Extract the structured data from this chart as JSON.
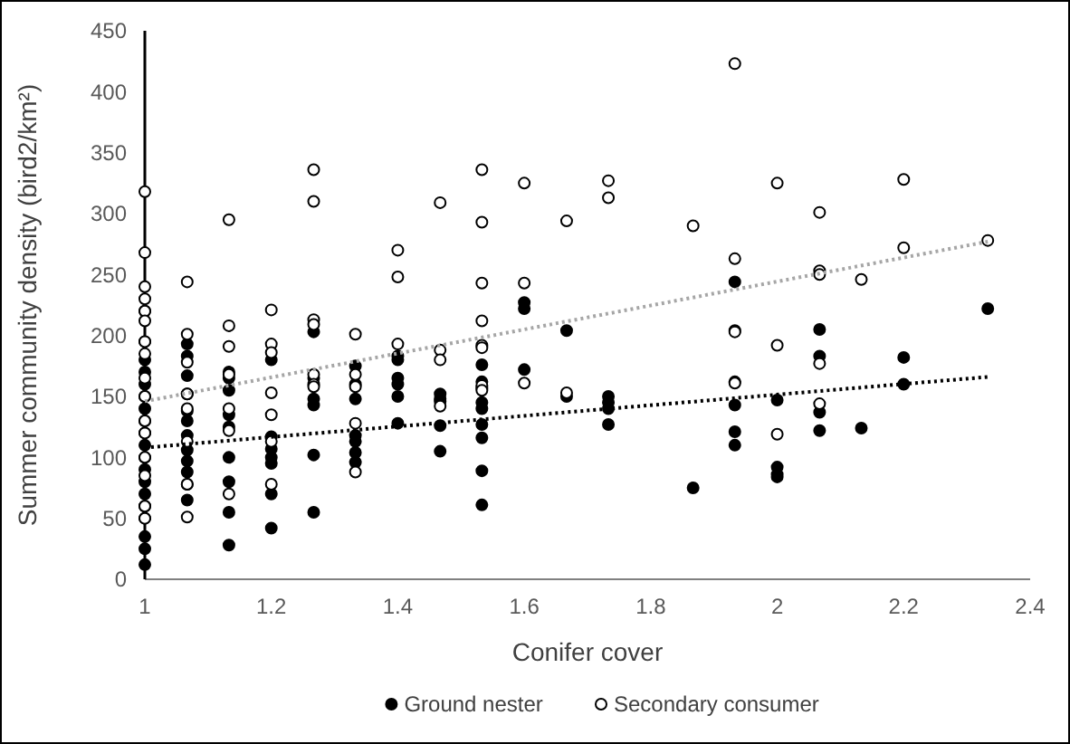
{
  "chart_data": {
    "type": "scatter",
    "xlabel": "Conifer cover",
    "ylabel": "Summer community density (bird2/km²)",
    "xlim": [
      1,
      2.4
    ],
    "xticks": [
      1,
      1.2,
      1.4,
      1.6,
      1.8,
      2,
      2.2,
      2.4
    ],
    "ylim": [
      0,
      450
    ],
    "yticks": [
      0,
      50,
      100,
      150,
      200,
      250,
      300,
      350,
      400,
      450
    ],
    "grid": false,
    "legend": "bottom",
    "marker": "circle",
    "series": [
      {
        "name": "Ground nester",
        "color": "#000000",
        "x": [
          1,
          1,
          1,
          1,
          1,
          1,
          1,
          1,
          1,
          1,
          1,
          1,
          1,
          1,
          1,
          1,
          1,
          1,
          1,
          1.067,
          1.067,
          1.067,
          1.067,
          1.067,
          1.067,
          1.067,
          1.067,
          1.067,
          1.067,
          1.067,
          1.067,
          1.133,
          1.133,
          1.133,
          1.133,
          1.133,
          1.133,
          1.133,
          1.133,
          1.133,
          1.2,
          1.2,
          1.2,
          1.2,
          1.2,
          1.2,
          1.2,
          1.267,
          1.267,
          1.267,
          1.267,
          1.267,
          1.267,
          1.333,
          1.333,
          1.333,
          1.333,
          1.333,
          1.333,
          1.333,
          1.4,
          1.4,
          1.4,
          1.4,
          1.4,
          1.4,
          1.467,
          1.467,
          1.467,
          1.467,
          1.467,
          1.533,
          1.533,
          1.533,
          1.533,
          1.533,
          1.533,
          1.533,
          1.533,
          1.533,
          1.6,
          1.6,
          1.6,
          1.667,
          1.667,
          1.733,
          1.733,
          1.733,
          1.733,
          1.867,
          1.933,
          1.933,
          1.933,
          1.933,
          1.933,
          2,
          2,
          2,
          2,
          2.067,
          2.067,
          2.067,
          2.067,
          2.133,
          2.2,
          2.2,
          2.333
        ],
        "values": [
          220,
          195,
          180,
          170,
          160,
          150,
          140,
          130,
          120,
          110,
          100,
          90,
          80,
          70,
          60,
          50,
          35,
          25,
          12,
          193,
          183,
          167,
          152,
          138,
          130,
          118,
          106,
          97,
          88,
          78,
          65,
          170,
          165,
          155,
          135,
          125,
          100,
          80,
          55,
          28,
          180,
          117,
          107,
          100,
          95,
          70,
          42,
          203,
          165,
          148,
          143,
          102,
          55,
          175,
          160,
          148,
          118,
          113,
          104,
          96,
          183,
          180,
          165,
          160,
          150,
          128,
          152,
          148,
          146,
          126,
          105,
          176,
          162,
          157,
          145,
          140,
          127,
          116,
          89,
          61,
          227,
          222,
          172,
          204,
          150,
          150,
          145,
          140,
          127,
          75,
          244,
          162,
          143,
          121,
          110,
          147,
          92,
          86,
          84,
          205,
          183,
          137,
          122,
          124,
          182,
          160,
          222
        ]
      },
      {
        "name": "Secondary consumer",
        "color": "#ffffff",
        "x": [
          1,
          1,
          1,
          1,
          1,
          1,
          1,
          1,
          1,
          1,
          1,
          1,
          1,
          1,
          1,
          1,
          1.067,
          1.067,
          1.067,
          1.067,
          1.067,
          1.067,
          1.067,
          1.067,
          1.133,
          1.133,
          1.133,
          1.133,
          1.133,
          1.133,
          1.133,
          1.2,
          1.2,
          1.2,
          1.2,
          1.2,
          1.2,
          1.2,
          1.267,
          1.267,
          1.267,
          1.267,
          1.267,
          1.267,
          1.267,
          1.333,
          1.333,
          1.333,
          1.333,
          1.333,
          1.4,
          1.4,
          1.4,
          1.467,
          1.467,
          1.467,
          1.467,
          1.533,
          1.533,
          1.533,
          1.533,
          1.533,
          1.533,
          1.533,
          1.533,
          1.6,
          1.6,
          1.6,
          1.667,
          1.667,
          1.733,
          1.733,
          1.867,
          1.933,
          1.933,
          1.933,
          1.933,
          1.933,
          2,
          2,
          2,
          2.067,
          2.067,
          2.067,
          2.067,
          2.067,
          2.133,
          2.2,
          2.2,
          2.333
        ],
        "values": [
          318,
          268,
          240,
          230,
          220,
          212,
          195,
          185,
          165,
          150,
          130,
          120,
          100,
          85,
          60,
          50,
          244,
          201,
          178,
          152,
          140,
          113,
          78,
          51,
          295,
          208,
          191,
          168,
          140,
          122,
          70,
          221,
          193,
          186,
          153,
          135,
          113,
          78,
          336,
          310,
          213,
          209,
          168,
          160,
          158,
          201,
          168,
          158,
          128,
          88,
          270,
          248,
          193,
          309,
          188,
          180,
          142,
          336,
          293,
          243,
          212,
          192,
          190,
          159,
          155,
          325,
          243,
          161,
          294,
          153,
          327,
          313,
          290,
          423,
          263,
          204,
          203,
          161,
          325,
          192,
          119,
          301,
          253,
          250,
          177,
          144,
          246,
          328,
          272,
          278
        ]
      },
      {
        "type": "line",
        "color": "#000000",
        "line_style": "dotted",
        "marker": "none",
        "x": [
          1,
          2.333
        ],
        "values": [
          108,
          166
        ]
      },
      {
        "type": "line",
        "color": "#a6a6a6",
        "line_style": "dotted",
        "marker": "none",
        "x": [
          1,
          2.333
        ],
        "values": [
          146,
          277
        ]
      }
    ]
  }
}
